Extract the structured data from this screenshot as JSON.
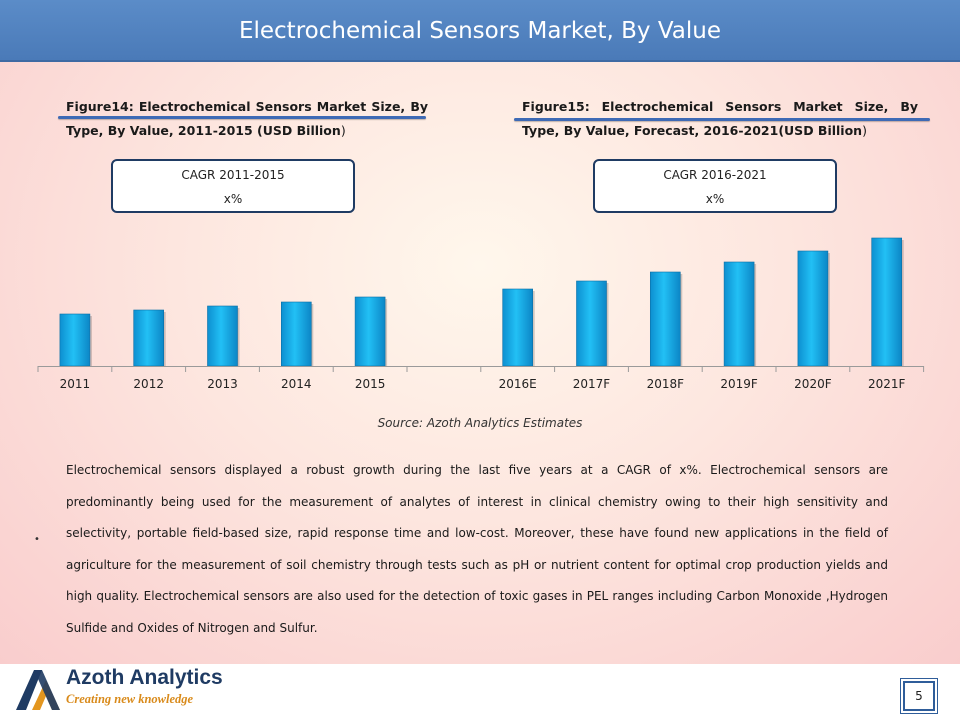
{
  "header": {
    "title": "Electrochemical Sensors Market, By Value"
  },
  "figures": [
    {
      "caption_bold": "Figure14: Electrochemical Sensors Market Size, By Type, By Value, 2011-2015 (USD Billion",
      "caption_end": ")"
    },
    {
      "caption_bold": "Figure15: Electrochemical Sensors Market Size, By Type, By Value, Forecast, 2016-2021(USD Billion",
      "caption_end": ")"
    }
  ],
  "cagr": [
    {
      "label": "CAGR 2011-2015",
      "value": "x%"
    },
    {
      "label": "CAGR 2016-2021",
      "value": "x%"
    }
  ],
  "chart_data": {
    "type": "bar",
    "categories": [
      "2011",
      "2012",
      "2013",
      "2014",
      "2015",
      "2016E",
      "2017F",
      "2018F",
      "2019F",
      "2020F",
      "2021F"
    ],
    "series": [
      {
        "values": [
          52,
          56,
          60,
          64,
          69,
          77,
          85,
          94,
          104,
          115,
          128
        ]
      }
    ],
    "ylim": [
      0,
      140
    ],
    "grid": false,
    "legend": "none",
    "bar_color": "#18b4ee"
  },
  "source": "Source: Azoth Analytics Estimates",
  "body": "Electrochemical sensors displayed a robust growth during the last five years at a CAGR of x%. Electrochemical sensors are predominantly being used for the measurement of analytes of interest in clinical chemistry owing to their high sensitivity and selectivity, portable field-based size, rapid response time and low-cost. Moreover, these have found new applications in the field of agriculture for the measurement of soil chemistry through tests such as pH or nutrient content for optimal crop production yields and high quality. Electrochemical sensors are also used for the detection of toxic gases in PEL ranges including Carbon Monoxide ,Hydrogen Sulfide and Oxides of Nitrogen and Sulfur.",
  "bullet": "•",
  "footer": {
    "brand": "Azoth Analytics",
    "tagline": "Creating new knowledge",
    "page": "5"
  }
}
